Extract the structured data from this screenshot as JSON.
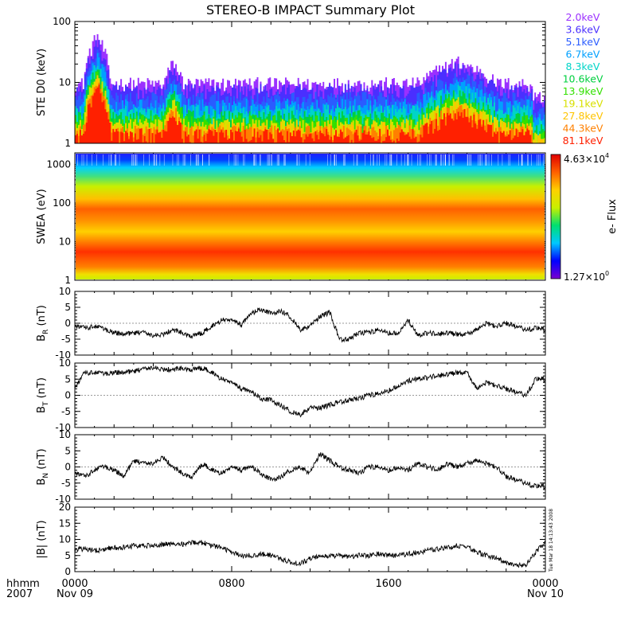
{
  "title": "STEREO-B IMPACT Summary Plot",
  "timestamp": "Tue Mar 18 14:13:43 2008",
  "time_axis": {
    "row1_labels": [
      "hhmm",
      "0000",
      "0800",
      "1600",
      "0000"
    ],
    "row2_labels": [
      "2007",
      "Nov 09",
      "",
      "",
      "Nov 10"
    ]
  },
  "chart_data": [
    {
      "type": "line",
      "id": "ste",
      "ylabel": "STE D0 (keV)",
      "yscale": "log",
      "ylim": [
        1,
        100
      ],
      "ytick_labels": [
        "1",
        "10",
        "100"
      ],
      "xlim": [
        0,
        24
      ],
      "legend_placement": "right",
      "series": [
        {
          "name": "2.0keV",
          "color": "#9b30ff",
          "level": 9.0
        },
        {
          "name": "3.6keV",
          "color": "#4a2fff",
          "level": 7.0
        },
        {
          "name": "5.1keV",
          "color": "#2a5cff",
          "level": 5.2
        },
        {
          "name": "6.7keV",
          "color": "#00a0ff",
          "level": 4.0
        },
        {
          "name": "8.3keV",
          "color": "#00d4c8",
          "level": 3.2
        },
        {
          "name": "10.6keV",
          "color": "#00d040",
          "level": 2.6
        },
        {
          "name": "13.9keV",
          "color": "#33e000",
          "level": 2.2
        },
        {
          "name": "19.1keV",
          "color": "#d8e000",
          "level": 1.9
        },
        {
          "name": "27.8keV",
          "color": "#ffc400",
          "level": 1.7
        },
        {
          "name": "44.3keV",
          "color": "#ff8000",
          "level": 1.5
        },
        {
          "name": "81.1keV",
          "color": "#ff2000",
          "level": 1.3
        }
      ],
      "enhancements": [
        {
          "start": 0.4,
          "end": 1.8,
          "peak": 6.0
        },
        {
          "start": 4.5,
          "end": 5.5,
          "peak": 2.2
        },
        {
          "start": 17.5,
          "end": 21.5,
          "peak": 2.3
        }
      ]
    },
    {
      "type": "heatmap",
      "id": "swea",
      "ylabel": "SWEA (eV)",
      "yscale": "log",
      "ylim": [
        1,
        2000
      ],
      "ytick_labels": [
        "1",
        "10",
        "100",
        "1000"
      ],
      "xlim": [
        0,
        24
      ],
      "colorbar": {
        "label": "e- Flux",
        "max_label": "4.63×10",
        "max_exp": "4",
        "min_label": "1.27×10",
        "min_exp": "0",
        "colors": [
          "#7a00d0",
          "#0000ff",
          "#00c8ff",
          "#00e070",
          "#c8f000",
          "#ffd000",
          "#ff6000",
          "#e00000"
        ]
      }
    },
    {
      "type": "line",
      "id": "br",
      "ylabel": "B",
      "ylabel_sub": "R",
      "ylabel_unit": " (nT)",
      "ylim": [
        -10,
        10
      ],
      "ytick_labels": [
        "-10",
        "-5",
        "0",
        "5",
        "10"
      ],
      "xlim": [
        0,
        24
      ],
      "x": [
        0,
        0.5,
        1,
        1.5,
        2,
        2.5,
        3,
        3.5,
        4,
        4.5,
        5,
        5.5,
        6,
        6.5,
        7,
        7.5,
        8,
        8.5,
        9,
        9.5,
        10,
        10.5,
        11,
        11.5,
        12,
        12.5,
        13,
        13.5,
        14,
        14.5,
        15,
        15.5,
        16,
        16.5,
        17,
        17.5,
        18,
        18.5,
        19,
        19.5,
        20,
        20.5,
        21,
        21.5,
        22,
        22.5,
        23,
        23.5,
        24
      ],
      "y": [
        -1,
        -1.5,
        -1,
        -2,
        -3,
        -3.5,
        -3,
        -3,
        -4,
        -3.5,
        -2,
        -3,
        -4,
        -3,
        -1,
        1,
        1,
        -0.5,
        3,
        4.5,
        3,
        4,
        2,
        -2,
        -1,
        2,
        3.5,
        -5,
        -5,
        -3,
        -3,
        -2,
        -3,
        -3,
        1,
        -4,
        -3,
        -3.5,
        -3,
        -3.5,
        -3.5,
        -2,
        0,
        -1,
        0,
        -1,
        -2,
        -1.5,
        -2
      ]
    },
    {
      "type": "line",
      "id": "bt",
      "ylabel": "B",
      "ylabel_sub": "T",
      "ylabel_unit": " (nT)",
      "ylim": [
        -10,
        10
      ],
      "ytick_labels": [
        "-10",
        "-5",
        "0",
        "5",
        "10"
      ],
      "xlim": [
        0,
        24
      ],
      "x": [
        0,
        0.5,
        1,
        1.5,
        2,
        2.5,
        3,
        3.5,
        4,
        4.5,
        5,
        5.5,
        6,
        6.5,
        7,
        7.5,
        8,
        8.5,
        9,
        9.5,
        10,
        10.5,
        11,
        11.5,
        12,
        12.5,
        13,
        13.5,
        14,
        14.5,
        15,
        15.5,
        16,
        16.5,
        17,
        17.5,
        18,
        18.5,
        19,
        19.5,
        20,
        20.5,
        21,
        21.5,
        22,
        22.5,
        23,
        23.5,
        24
      ],
      "y": [
        2,
        7,
        7,
        6.5,
        7,
        7,
        7.5,
        8,
        8.5,
        8,
        8,
        8.5,
        8,
        8.5,
        7,
        5,
        4,
        2,
        1,
        -1,
        -1.5,
        -3,
        -5,
        -6,
        -4,
        -4,
        -3,
        -2,
        -1.5,
        -1,
        0,
        0.5,
        1.5,
        3,
        4.5,
        5,
        5.5,
        6,
        6.5,
        7,
        7,
        2,
        4,
        3,
        2,
        1,
        0,
        5,
        5
      ]
    },
    {
      "type": "line",
      "id": "bn",
      "ylabel": "B",
      "ylabel_sub": "N",
      "ylabel_unit": " (nT)",
      "ylim": [
        -10,
        10
      ],
      "ytick_labels": [
        "-10",
        "-5",
        "0",
        "5",
        "10"
      ],
      "xlim": [
        0,
        24
      ],
      "x": [
        0,
        0.5,
        1,
        1.5,
        2,
        2.5,
        3,
        3.5,
        4,
        4.5,
        5,
        5.5,
        6,
        6.5,
        7,
        7.5,
        8,
        8.5,
        9,
        9.5,
        10,
        10.5,
        11,
        11.5,
        12,
        12.5,
        13,
        13.5,
        14,
        14.5,
        15,
        15.5,
        16,
        16.5,
        17,
        17.5,
        18,
        18.5,
        19,
        19.5,
        20,
        20.5,
        21,
        21.5,
        22,
        22.5,
        23,
        23.5,
        24
      ],
      "y": [
        -2,
        -3,
        -1,
        0,
        -1,
        -3,
        2,
        1,
        1,
        3,
        0,
        -2,
        -3,
        1,
        -1,
        -2,
        0,
        -1,
        0,
        -2,
        -4,
        -3,
        -1,
        0,
        -2,
        4,
        2,
        0,
        -1,
        -2,
        0,
        0,
        -1,
        0,
        -1,
        1,
        0,
        -1,
        1,
        0,
        1,
        2,
        1,
        0,
        -3,
        -4,
        -5,
        -6,
        -6
      ]
    },
    {
      "type": "line",
      "id": "bmag",
      "ylabel": "|B| (nT)",
      "ylim": [
        0,
        20
      ],
      "ytick_labels": [
        "0",
        "5",
        "10",
        "15",
        "20"
      ],
      "xlim": [
        0,
        24
      ],
      "x": [
        0,
        0.5,
        1,
        1.5,
        2,
        2.5,
        3,
        3.5,
        4,
        4.5,
        5,
        5.5,
        6,
        6.5,
        7,
        7.5,
        8,
        8.5,
        9,
        9.5,
        10,
        10.5,
        11,
        11.5,
        12,
        12.5,
        13,
        13.5,
        14,
        14.5,
        15,
        15.5,
        16,
        16.5,
        17,
        17.5,
        18,
        18.5,
        19,
        19.5,
        20,
        20.5,
        21,
        21.5,
        22,
        22.5,
        23,
        23.5,
        24
      ],
      "y": [
        7,
        7,
        6.5,
        7,
        7.5,
        7.5,
        8,
        8,
        8,
        8.5,
        8.5,
        8.5,
        9,
        9,
        8,
        7.5,
        6,
        5,
        5,
        5.5,
        5,
        4,
        3,
        2.5,
        4,
        5,
        5,
        5,
        4.5,
        5,
        5,
        5.5,
        5,
        5,
        5.5,
        6,
        6.5,
        7,
        7.5,
        8,
        8,
        6,
        5,
        4,
        3,
        2,
        2,
        6,
        9
      ]
    }
  ]
}
